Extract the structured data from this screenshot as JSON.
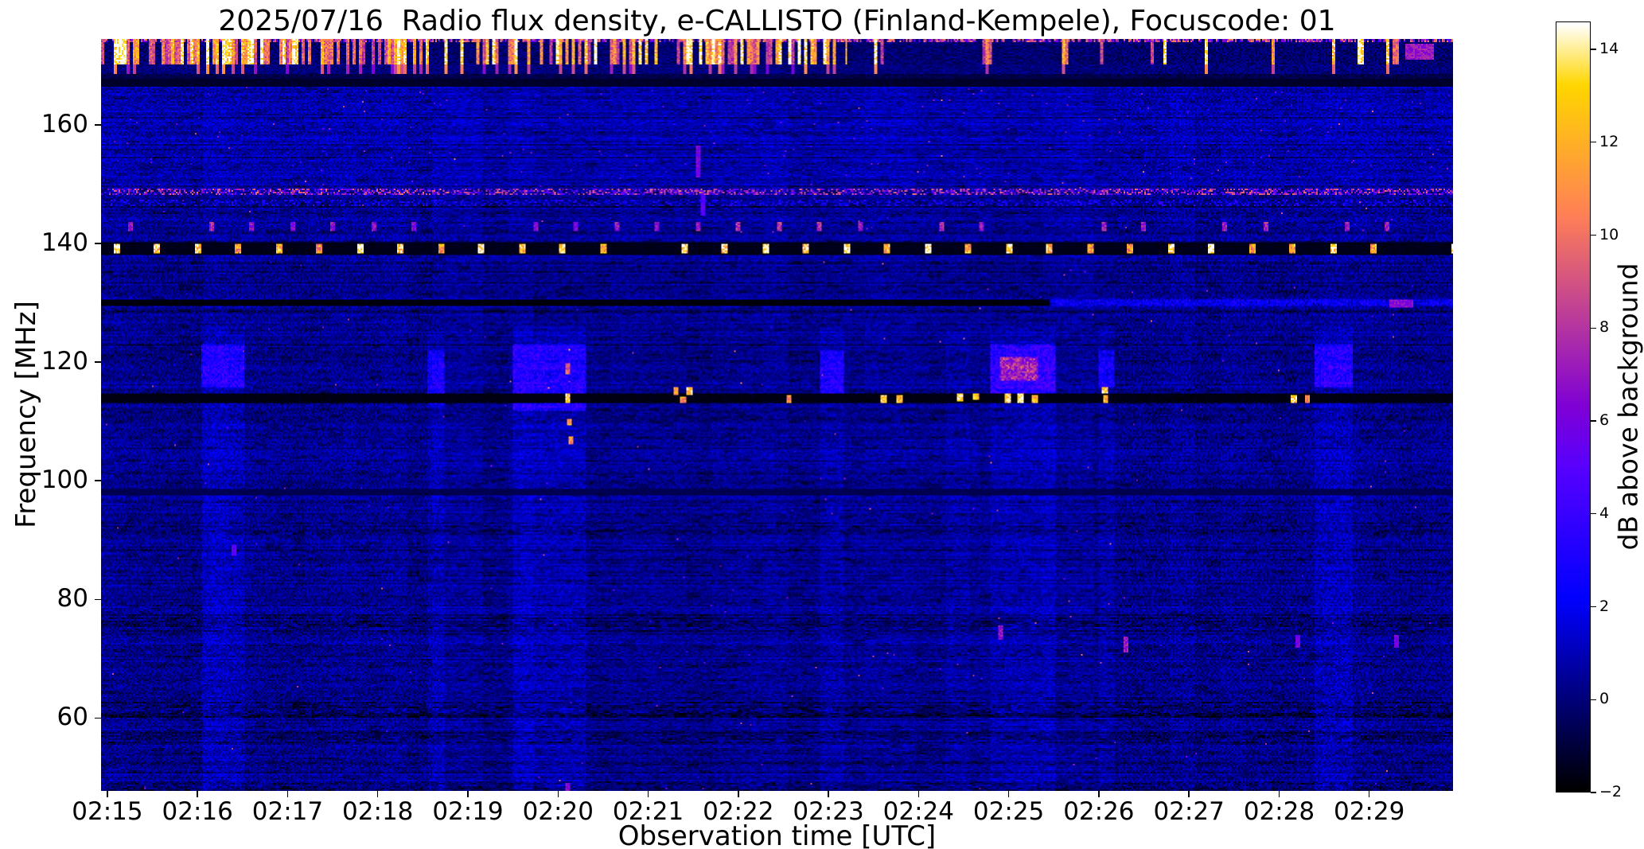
{
  "chart_data": {
    "type": "heatmap",
    "title": "2025/07/16  Radio flux density, e-CALLISTO (Finland-Kempele), Focuscode: 01",
    "xlabel": "Observation time [UTC]",
    "ylabel": "Frequency [MHz]",
    "grid": false,
    "x_tick_labels": [
      "02:15",
      "02:16",
      "02:17",
      "02:18",
      "02:19",
      "02:20",
      "02:21",
      "02:22",
      "02:23",
      "02:24",
      "02:25",
      "02:26",
      "02:27",
      "02:28",
      "02:29"
    ],
    "x_tick_minutes": [
      0,
      1,
      2,
      3,
      4,
      5,
      6,
      7,
      8,
      9,
      10,
      11,
      12,
      13,
      14
    ],
    "x_range_minutes": [
      -0.07,
      14.93
    ],
    "x_start_time": "02:15",
    "y_tick_labels": [
      "160",
      "140",
      "120",
      "100",
      "80",
      "60"
    ],
    "y_tick_values": [
      160,
      140,
      120,
      100,
      80,
      60
    ],
    "freq_range_mhz": [
      47.7,
      174.5
    ],
    "colorbar": {
      "label": "dB above background",
      "tick_labels": [
        "14",
        "12",
        "10",
        "8",
        "6",
        "4",
        "2",
        "0",
        "−2"
      ],
      "tick_values": [
        14,
        12,
        10,
        8,
        6,
        4,
        2,
        0,
        -2
      ],
      "range": [
        -2,
        14.6
      ],
      "colormap": "gnuplot2",
      "colormap_stops": [
        {
          "pos": 0.0,
          "hex": "#000000"
        },
        {
          "pos": 0.25,
          "hex": "#0000ff"
        },
        {
          "pos": 0.5,
          "hex": "#7f00d6"
        },
        {
          "pos": 0.75,
          "hex": "#ff7f57"
        },
        {
          "pos": 0.92,
          "hex": "#ffd600"
        },
        {
          "pos": 1.0,
          "hex": "#ffffff"
        }
      ]
    },
    "background": {
      "base_db": 0.2,
      "noise_amp_db": 1.0,
      "appearance": "dark blue noisy background near 0 dB"
    },
    "note": "Spectrogram features; times are minutes after 02:15 UTC, frequencies in MHz, intensities in dB above background.",
    "features": [
      {
        "kind": "vband",
        "t": [
          1.05,
          1.5
        ],
        "f": [
          47,
          126
        ],
        "db_add": 0.6
      },
      {
        "kind": "vband",
        "t": [
          3.55,
          3.72
        ],
        "f": [
          47,
          126
        ],
        "db_add": 0.5
      },
      {
        "kind": "vband",
        "t": [
          4.5,
          5.3
        ],
        "f": [
          47,
          126
        ],
        "db_add": 0.7
      },
      {
        "kind": "vband",
        "t": [
          7.9,
          8.15
        ],
        "f": [
          47,
          126
        ],
        "db_add": 0.5
      },
      {
        "kind": "vband",
        "t": [
          9.3,
          9.55
        ],
        "f": [
          47,
          126
        ],
        "db_add": 0.4
      },
      {
        "kind": "vband",
        "t": [
          9.8,
          10.5
        ],
        "f": [
          47,
          126
        ],
        "db_add": 0.6
      },
      {
        "kind": "vband",
        "t": [
          11.0,
          11.15
        ],
        "f": [
          47,
          126
        ],
        "db_add": 0.5
      },
      {
        "kind": "vband",
        "t": [
          13.4,
          13.8
        ],
        "f": [
          47,
          126
        ],
        "db_add": 0.6
      },
      {
        "kind": "patch",
        "t": [
          1.05,
          1.5
        ],
        "f": [
          116,
          123
        ],
        "db_add": 2.2
      },
      {
        "kind": "patch",
        "t": [
          3.55,
          3.72
        ],
        "f": [
          113,
          122
        ],
        "db_add": 1.8
      },
      {
        "kind": "patch",
        "t": [
          4.5,
          5.3
        ],
        "f": [
          112,
          123
        ],
        "db_add": 2.2
      },
      {
        "kind": "patch",
        "t": [
          7.9,
          8.15
        ],
        "f": [
          115,
          122
        ],
        "db_add": 2.2
      },
      {
        "kind": "patch",
        "t": [
          9.8,
          10.5
        ],
        "f": [
          114,
          123
        ],
        "db_add": 2.6
      },
      {
        "kind": "patch",
        "t": [
          9.9,
          10.3
        ],
        "f": [
          117,
          121
        ],
        "db_add": 3.5
      },
      {
        "kind": "patch",
        "t": [
          11.0,
          11.15
        ],
        "f": [
          116,
          122
        ],
        "db_add": 1.8
      },
      {
        "kind": "patch",
        "t": [
          13.4,
          13.8
        ],
        "f": [
          116,
          123
        ],
        "db_add": 2.2
      },
      {
        "kind": "noise_band",
        "f": [
          150,
          167
        ],
        "db_add": 0.5,
        "speckle_p": 0.004,
        "speckle_db": 4
      },
      {
        "kind": "speckle_line",
        "f": [
          148.4,
          149.4
        ],
        "p": 0.55,
        "db": [
          3,
          10
        ]
      },
      {
        "kind": "speckle_line",
        "f": [
          146.6,
          147.4
        ],
        "p": 0.3,
        "db": [
          1,
          4
        ]
      },
      {
        "kind": "dot_line",
        "f": [
          142.4,
          143.6
        ],
        "period": 0.45,
        "phase": 0.25,
        "dot_w": 0.05,
        "db": 7,
        "p": 0.75
      },
      {
        "kind": "dark_line",
        "f": [
          138.2,
          140.2
        ],
        "t": [
          -0.07,
          14.93
        ],
        "db": -1.8
      },
      {
        "kind": "dot_line",
        "f": [
          138.5,
          139.9
        ],
        "period": 0.45,
        "phase": 0.1,
        "dot_w": 0.07,
        "db": 13,
        "p": 0.82
      },
      {
        "kind": "dark_line",
        "f": [
          129.6,
          130.45
        ],
        "t": [
          -0.07,
          10.45
        ],
        "db": -2
      },
      {
        "kind": "bright_line",
        "f": [
          129.6,
          130.45
        ],
        "t": [
          10.45,
          14.93
        ],
        "db_add": 1.8
      },
      {
        "kind": "spot",
        "t": 14.35,
        "f": 130.0,
        "tw": 0.25,
        "fw": 1.0,
        "db": 6.5
      },
      {
        "kind": "dark_line",
        "f": [
          113.3,
          114.8
        ],
        "t": [
          -0.07,
          14.93
        ],
        "db": -1.9
      },
      {
        "kind": "dark_line",
        "f": [
          97.9,
          98.7
        ],
        "t": [
          -0.07,
          14.93
        ],
        "db": -0.9
      },
      {
        "kind": "texture_band",
        "f": [
          60.3,
          62.6
        ],
        "db": -1.1
      },
      {
        "kind": "texture_band",
        "f": [
          55.9,
          57.4
        ],
        "db": -0.8
      },
      {
        "kind": "texture_band",
        "f": [
          74.8,
          77.0
        ],
        "db": -0.8
      },
      {
        "kind": "texture_band",
        "f": [
          47.0,
          49.2
        ],
        "db": -0.8
      },
      {
        "kind": "texture_band",
        "f": [
          91.0,
          93.0
        ],
        "db": -0.6
      },
      {
        "kind": "burst_band",
        "f": [
          167.6,
          174.6
        ],
        "dense_until": 8.2,
        "p_dense": 0.5,
        "p_sparse": 0.12,
        "db": [
          8,
          15
        ]
      },
      {
        "kind": "dark_line",
        "f": [
          166.8,
          167.8
        ],
        "t": [
          -0.07,
          14.93
        ],
        "db": -1.5
      },
      {
        "kind": "spot",
        "t": 14.55,
        "f": 172.5,
        "tw": 0.3,
        "fw": 2.5,
        "db": 7
      },
      {
        "kind": "spot",
        "t": 5.1,
        "f": 114.0,
        "tw": 0.05,
        "fw": 1.2,
        "db": 13
      },
      {
        "kind": "spot",
        "t": 5.12,
        "f": 110.0,
        "tw": 0.04,
        "fw": 1.0,
        "db": 12
      },
      {
        "kind": "spot",
        "t": 5.14,
        "f": 107.0,
        "tw": 0.04,
        "fw": 1.0,
        "db": 11
      },
      {
        "kind": "spot",
        "t": 5.1,
        "f": 119.0,
        "tw": 0.04,
        "fw": 1.5,
        "db": 9
      },
      {
        "kind": "spot",
        "t": 6.3,
        "f": 115.3,
        "tw": 0.05,
        "fw": 1.0,
        "db": 12
      },
      {
        "kind": "spot",
        "t": 6.45,
        "f": 115.3,
        "tw": 0.05,
        "fw": 1.0,
        "db": 13
      },
      {
        "kind": "spot",
        "t": 6.38,
        "f": 113.9,
        "tw": 0.04,
        "fw": 0.8,
        "db": 11
      },
      {
        "kind": "spot",
        "t": 7.55,
        "f": 113.9,
        "tw": 0.04,
        "fw": 0.9,
        "db": 11
      },
      {
        "kind": "spot",
        "t": 8.6,
        "f": 113.9,
        "tw": 0.06,
        "fw": 1.1,
        "db": 13
      },
      {
        "kind": "spot",
        "t": 8.78,
        "f": 113.9,
        "tw": 0.05,
        "fw": 1.0,
        "db": 12
      },
      {
        "kind": "spot",
        "t": 9.45,
        "f": 114.3,
        "tw": 0.06,
        "fw": 1.1,
        "db": 13
      },
      {
        "kind": "spot",
        "t": 9.62,
        "f": 114.3,
        "tw": 0.05,
        "fw": 1.0,
        "db": 12
      },
      {
        "kind": "spot",
        "t": 9.98,
        "f": 114.0,
        "tw": 0.06,
        "fw": 1.2,
        "db": 13
      },
      {
        "kind": "spot",
        "t": 10.12,
        "f": 114.0,
        "tw": 0.06,
        "fw": 1.2,
        "db": 14
      },
      {
        "kind": "spot",
        "t": 10.28,
        "f": 114.0,
        "tw": 0.05,
        "fw": 1.0,
        "db": 12
      },
      {
        "kind": "spot",
        "t": 11.05,
        "f": 115.4,
        "tw": 0.05,
        "fw": 1.0,
        "db": 13
      },
      {
        "kind": "spot",
        "t": 11.07,
        "f": 113.9,
        "tw": 0.04,
        "fw": 0.9,
        "db": 12
      },
      {
        "kind": "spot",
        "t": 13.15,
        "f": 113.9,
        "tw": 0.05,
        "fw": 1.0,
        "db": 13
      },
      {
        "kind": "spot",
        "t": 13.3,
        "f": 113.9,
        "tw": 0.04,
        "fw": 0.9,
        "db": 11
      },
      {
        "kind": "spot",
        "t": 5.1,
        "f": 48.5,
        "tw": 0.04,
        "fw": 1.0,
        "db": 7
      },
      {
        "kind": "spot",
        "t": 1.4,
        "f": 88.5,
        "tw": 0.03,
        "fw": 1.5,
        "db": 5
      },
      {
        "kind": "spot",
        "t": 9.9,
        "f": 74.5,
        "tw": 0.03,
        "fw": 2.0,
        "db": 7
      },
      {
        "kind": "spot",
        "t": 11.3,
        "f": 72.5,
        "tw": 0.03,
        "fw": 2.5,
        "db": 7
      },
      {
        "kind": "spot",
        "t": 13.2,
        "f": 73.0,
        "tw": 0.03,
        "fw": 2.0,
        "db": 6
      },
      {
        "kind": "spot",
        "t": 14.3,
        "f": 73.0,
        "tw": 0.03,
        "fw": 2.0,
        "db": 6
      },
      {
        "kind": "spot",
        "t": 6.55,
        "f": 154.0,
        "tw": 0.03,
        "fw": 5.0,
        "db": 6
      },
      {
        "kind": "spot",
        "t": 6.6,
        "f": 147.0,
        "tw": 0.03,
        "fw": 4.0,
        "db": 5
      }
    ]
  }
}
